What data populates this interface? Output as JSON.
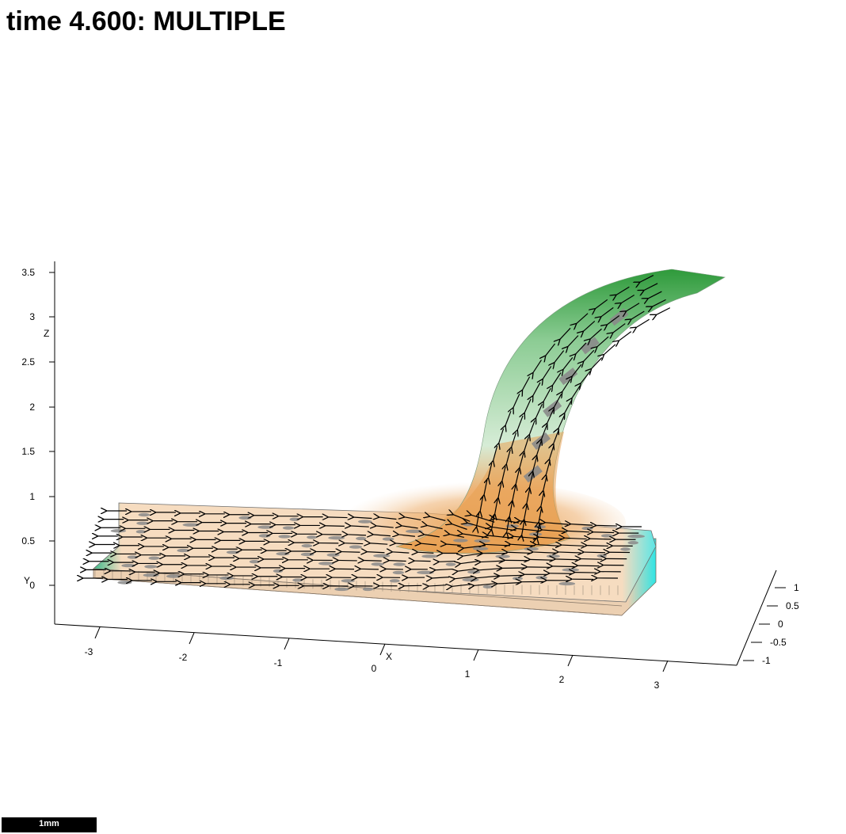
{
  "title": "time 4.600: MULTIPLE",
  "scale_bar": "1mm",
  "axes": {
    "z": {
      "label": "Z",
      "ticks": [
        "3.5",
        "3",
        "2.5",
        "2",
        "1.5",
        "1",
        "0.5",
        "0"
      ]
    },
    "x": {
      "label": "X",
      "ticks": [
        "-3",
        "-2",
        "-1",
        "0",
        "1",
        "2",
        "3"
      ]
    },
    "y": {
      "label": "Y",
      "ticks": [
        "1",
        "0.5",
        "0",
        "-0.5",
        "-1"
      ]
    }
  },
  "colors": {
    "substrate": "#f6dcc0",
    "stream_orange": "#e8a052",
    "jet_green": "#2e9a3a",
    "jet_light_green": "#c8e8c8",
    "edge_cyan": "#2ee6e6",
    "edge_teal": "#2aa878",
    "arrow": "#000000",
    "marker_gray": "#8a8a8a"
  }
}
